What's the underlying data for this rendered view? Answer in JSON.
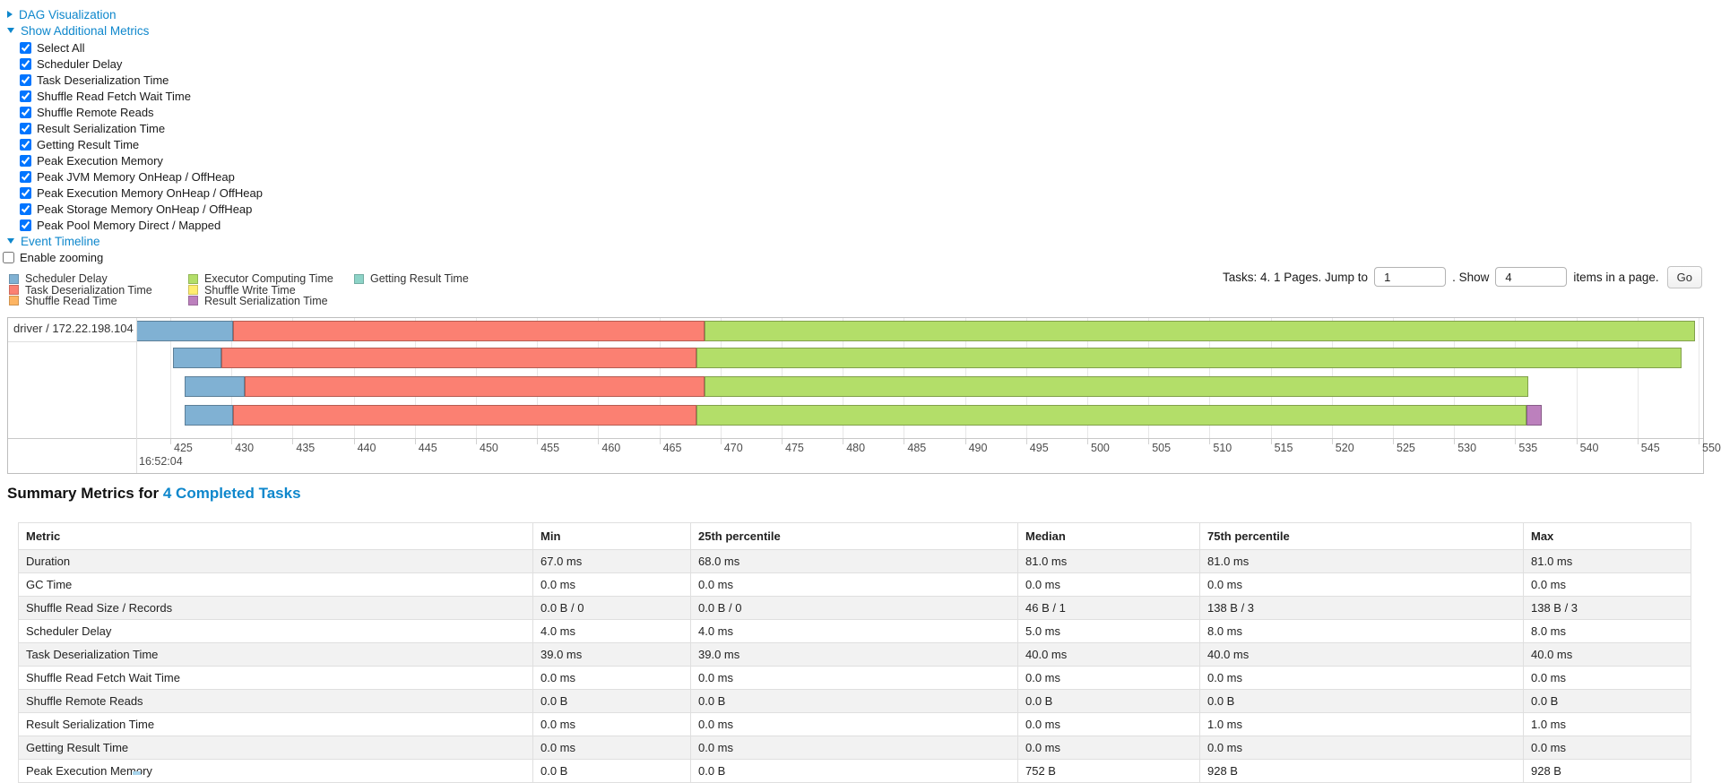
{
  "colors": {
    "link": "#0e87cc",
    "scheduler-delay": "#80B1D3",
    "task-deserialization": "#FB8072",
    "shuffle-read": "#FDB462",
    "executor-computing": "#B3DE69",
    "shuffle-write": "#FFED6F",
    "result-serialization": "#BC80BD",
    "getting-result": "#8DD3C7"
  },
  "controls": {
    "dag_toggle": {
      "label": "DAG Visualization",
      "state": "collapsed"
    },
    "metrics_toggle": {
      "label": "Show Additional Metrics",
      "state": "expanded"
    },
    "timeline_toggle": {
      "label": "Event Timeline",
      "state": "expanded"
    },
    "additional_metrics": [
      {
        "label": "Select All",
        "checked": true
      },
      {
        "label": "Scheduler Delay",
        "checked": true
      },
      {
        "label": "Task Deserialization Time",
        "checked": true
      },
      {
        "label": "Shuffle Read Fetch Wait Time",
        "checked": true
      },
      {
        "label": "Shuffle Remote Reads",
        "checked": true
      },
      {
        "label": "Result Serialization Time",
        "checked": true
      },
      {
        "label": "Getting Result Time",
        "checked": true
      },
      {
        "label": "Peak Execution Memory",
        "checked": true
      },
      {
        "label": "Peak JVM Memory OnHeap / OffHeap",
        "checked": true
      },
      {
        "label": "Peak Execution Memory OnHeap / OffHeap",
        "checked": true
      },
      {
        "label": "Peak Storage Memory OnHeap / OffHeap",
        "checked": true
      },
      {
        "label": "Peak Pool Memory Direct / Mapped",
        "checked": true
      }
    ],
    "enable_zooming": {
      "label": "Enable zooming",
      "checked": false
    }
  },
  "legend": {
    "columns": [
      [
        {
          "label": "Scheduler Delay",
          "type": "scheduler-delay"
        },
        {
          "label": "Task Deserialization Time",
          "type": "task-deserialization"
        },
        {
          "label": "Shuffle Read Time",
          "type": "shuffle-read"
        }
      ],
      [
        {
          "label": "Executor Computing Time",
          "type": "executor-computing"
        },
        {
          "label": "Shuffle Write Time",
          "type": "shuffle-write"
        },
        {
          "label": "Result Serialization Time",
          "type": "result-serialization"
        }
      ],
      [
        {
          "label": "Getting Result Time",
          "type": "getting-result"
        }
      ]
    ]
  },
  "pagination": {
    "prefix": "Tasks: 4. 1 Pages. Jump to",
    "jump_value": "1",
    "show_label": ". Show",
    "show_value": "4",
    "suffix": "items in a page.",
    "go_label": "Go"
  },
  "timeline": {
    "group_label": "driver / 172.22.198.104",
    "axis": {
      "major_label": "16:52:04",
      "tick_start": 425,
      "tick_end": 550,
      "tick_step": 5
    }
  },
  "chart_data": {
    "type": "timeline",
    "title": "Event Timeline",
    "group": "driver / 172.22.198.104",
    "x_axis": {
      "unit": "ms within second 16:52:04",
      "range": [
        422,
        550
      ],
      "tick_step": 5,
      "major_label": "16:52:04"
    },
    "legend_entries": [
      "Scheduler Delay",
      "Task Deserialization Time",
      "Shuffle Read Time",
      "Executor Computing Time",
      "Shuffle Write Time",
      "Result Serialization Time",
      "Getting Result Time"
    ],
    "tasks": [
      {
        "segments": [
          {
            "type": "scheduler-delay",
            "start_ms": 422.2,
            "end_ms": 430.1
          },
          {
            "type": "task-deserialization",
            "start_ms": 430.1,
            "end_ms": 468.7
          },
          {
            "type": "executor-computing",
            "start_ms": 468.7,
            "end_ms": 549.7
          }
        ]
      },
      {
        "segments": [
          {
            "type": "scheduler-delay",
            "start_ms": 425.2,
            "end_ms": 429.2
          },
          {
            "type": "task-deserialization",
            "start_ms": 429.2,
            "end_ms": 468.0
          },
          {
            "type": "executor-computing",
            "start_ms": 468.0,
            "end_ms": 548.6
          }
        ]
      },
      {
        "segments": [
          {
            "type": "scheduler-delay",
            "start_ms": 426.2,
            "end_ms": 431.1
          },
          {
            "type": "task-deserialization",
            "start_ms": 431.1,
            "end_ms": 468.7
          },
          {
            "type": "executor-computing",
            "start_ms": 468.7,
            "end_ms": 536.1
          }
        ]
      },
      {
        "segments": [
          {
            "type": "scheduler-delay",
            "start_ms": 426.2,
            "end_ms": 430.1
          },
          {
            "type": "task-deserialization",
            "start_ms": 430.1,
            "end_ms": 468.0
          },
          {
            "type": "executor-computing",
            "start_ms": 468.0,
            "end_ms": 535.9
          },
          {
            "type": "result-serialization",
            "start_ms": 535.9,
            "end_ms": 537.2
          }
        ]
      }
    ]
  },
  "summary": {
    "title_prefix": "Summary Metrics for",
    "title_link": "4 Completed Tasks",
    "table": {
      "columns": [
        "Metric",
        "Min",
        "25th percentile",
        "Median",
        "75th percentile",
        "Max"
      ],
      "rows": [
        [
          "Duration",
          "67.0 ms",
          "68.0 ms",
          "81.0 ms",
          "81.0 ms",
          "81.0 ms"
        ],
        [
          "GC Time",
          "0.0 ms",
          "0.0 ms",
          "0.0 ms",
          "0.0 ms",
          "0.0 ms"
        ],
        [
          "Shuffle Read Size / Records",
          "0.0 B / 0",
          "0.0 B / 0",
          "46 B / 1",
          "138 B / 3",
          "138 B / 3"
        ],
        [
          "Scheduler Delay",
          "4.0 ms",
          "4.0 ms",
          "5.0 ms",
          "8.0 ms",
          "8.0 ms"
        ],
        [
          "Task Deserialization Time",
          "39.0 ms",
          "39.0 ms",
          "40.0 ms",
          "40.0 ms",
          "40.0 ms"
        ],
        [
          "Shuffle Read Fetch Wait Time",
          "0.0 ms",
          "0.0 ms",
          "0.0 ms",
          "0.0 ms",
          "0.0 ms"
        ],
        [
          "Shuffle Remote Reads",
          "0.0 B",
          "0.0 B",
          "0.0 B",
          "0.0 B",
          "0.0 B"
        ],
        [
          "Result Serialization Time",
          "0.0 ms",
          "0.0 ms",
          "0.0 ms",
          "1.0 ms",
          "1.0 ms"
        ],
        [
          "Getting Result Time",
          "0.0 ms",
          "0.0 ms",
          "0.0 ms",
          "0.0 ms",
          "0.0 ms"
        ],
        [
          "Peak Execution Memory",
          "0.0 B",
          "0.0 B",
          "752 B",
          "928 B",
          "928 B"
        ]
      ]
    }
  }
}
